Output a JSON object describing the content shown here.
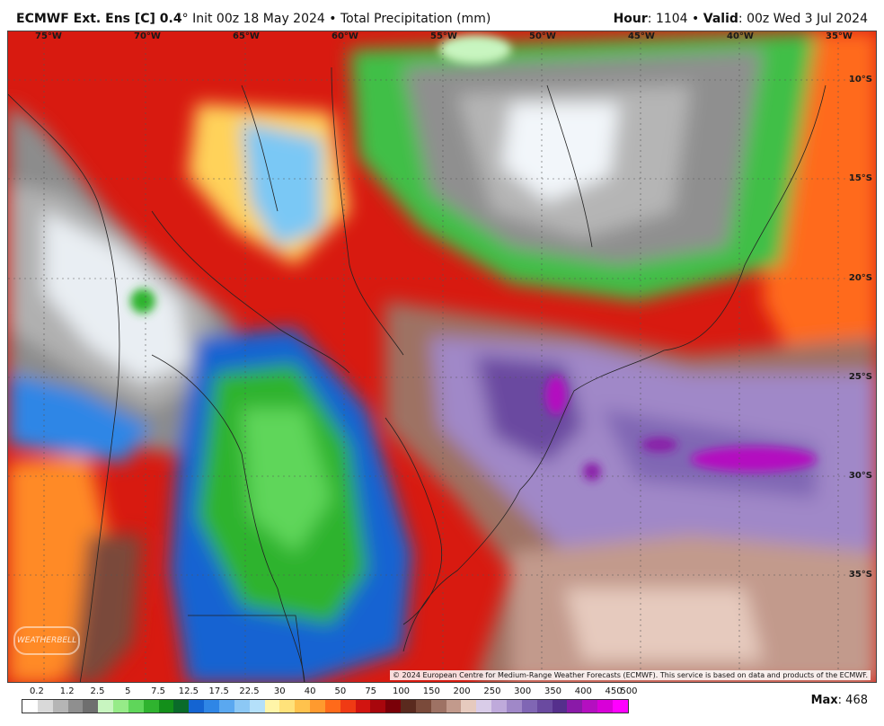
{
  "header": {
    "model": "ECMWF Ext. Ens [C] 0.4",
    "degree": "°",
    "init": "Init 00z 18 May 2024",
    "sep": "•",
    "field": "Total Precipitation (mm)",
    "hour_label": "Hour",
    "hour_value": ": 1104",
    "valid_label": "Valid",
    "valid_value": ": 00z Wed 3 Jul 2024"
  },
  "map": {
    "lon_labels": [
      "75°W",
      "70°W",
      "65°W",
      "60°W",
      "55°W",
      "50°W",
      "45°W",
      "40°W",
      "35°W"
    ],
    "lat_labels": [
      "10°S",
      "15°S",
      "20°S",
      "25°S",
      "30°S",
      "35°S"
    ],
    "copyright": "© 2024 European Centre for Medium-Range Weather Forecasts (ECMWF). This service is based on data and products of the ECMWF.",
    "logo_text": "WEATHERBELL"
  },
  "legend": {
    "labels": [
      "0.2",
      "1.2",
      "2.5",
      "5",
      "7.5",
      "12.5",
      "17.5",
      "22.5",
      "30",
      "40",
      "50",
      "75",
      "100",
      "150",
      "200",
      "250",
      "300",
      "350",
      "400",
      "450",
      "500"
    ],
    "colors": [
      "#ffffff",
      "#d9d9d9",
      "#b5b5b5",
      "#8f8f8f",
      "#6f6f6f",
      "#c8f5c0",
      "#96eb88",
      "#5fd65a",
      "#2fb32f",
      "#138f1a",
      "#0a6b2a",
      "#1464d2",
      "#2f86e6",
      "#5aa8f0",
      "#8cc8f5",
      "#b4e0fa",
      "#fff5a8",
      "#ffe27a",
      "#ffc24d",
      "#ff9a2e",
      "#ff6a1a",
      "#f03a14",
      "#d21410",
      "#a8060c",
      "#7a0008",
      "#5a2a1e",
      "#7a4a3a",
      "#9e7264",
      "#c29a8c",
      "#e6cabe",
      "#d9cce8",
      "#bfaadb",
      "#a088c8",
      "#8066b4",
      "#6a4aa0",
      "#552f8c",
      "#8a1aa8",
      "#b40fc0",
      "#d800d8",
      "#ff00ff"
    ],
    "max_label": "Max",
    "max_value": ": 468"
  }
}
